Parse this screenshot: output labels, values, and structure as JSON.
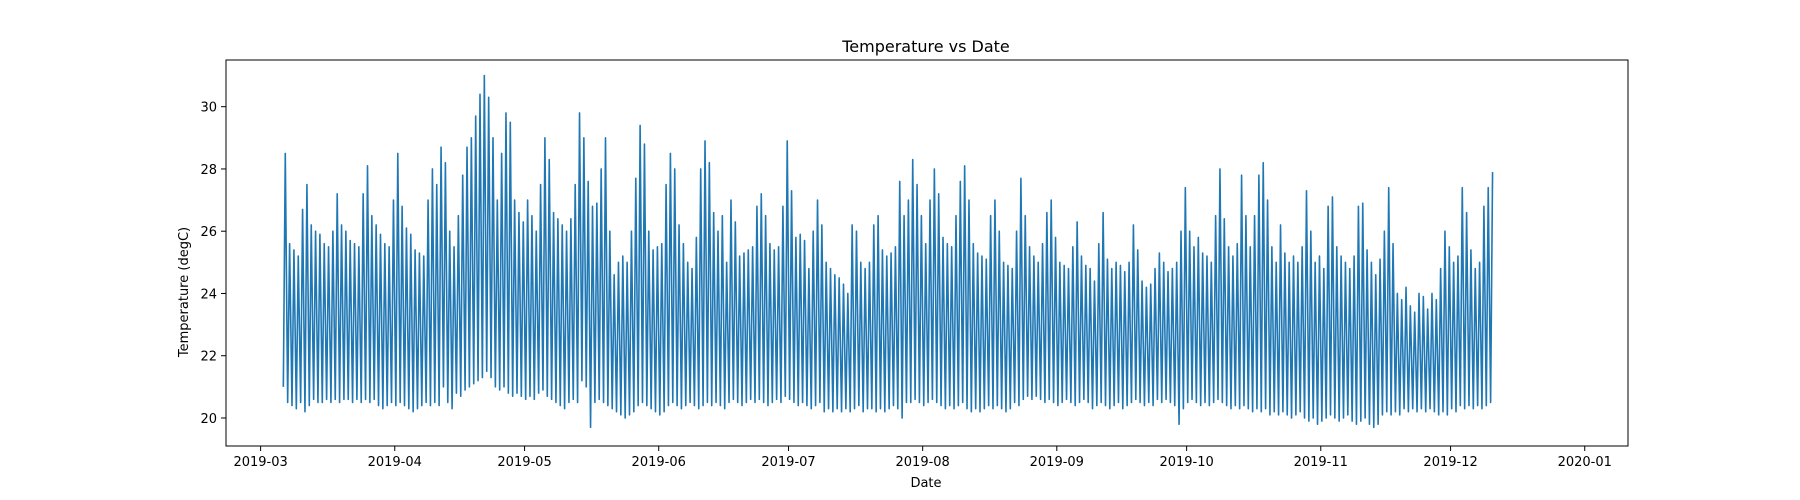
{
  "chart_data": {
    "type": "line",
    "title": "Temperature vs Date",
    "xlabel": "Date",
    "ylabel": "Temperature (degC)",
    "grid": false,
    "legend": "none",
    "x_ticks": [
      "2019-03",
      "2019-04",
      "2019-05",
      "2019-06",
      "2019-07",
      "2019-08",
      "2019-09",
      "2019-10",
      "2019-11",
      "2019-12",
      "2020-01"
    ],
    "xlim": [
      "2019-02-21",
      "2020-01-11"
    ],
    "y_ticks": [
      20,
      22,
      24,
      26,
      28,
      30
    ],
    "ylim": [
      19.1,
      31.5
    ],
    "series": [
      {
        "name": "",
        "color": "#1f77b4",
        "start_date": "2019-03-06",
        "end_date": "2019-12-31",
        "daily_range": [
          [
            21.0,
            28.5
          ],
          [
            20.5,
            25.6
          ],
          [
            20.4,
            25.4
          ],
          [
            20.3,
            25.2
          ],
          [
            20.5,
            26.7
          ],
          [
            20.2,
            27.5
          ],
          [
            20.4,
            26.2
          ],
          [
            20.6,
            26.0
          ],
          [
            20.5,
            25.9
          ],
          [
            20.5,
            25.6
          ],
          [
            20.6,
            25.5
          ],
          [
            20.5,
            26.0
          ],
          [
            20.6,
            27.2
          ],
          [
            20.5,
            26.2
          ],
          [
            20.6,
            26.0
          ],
          [
            20.6,
            25.7
          ],
          [
            20.5,
            25.6
          ],
          [
            20.6,
            25.5
          ],
          [
            20.5,
            27.2
          ],
          [
            20.6,
            28.1
          ],
          [
            20.5,
            26.5
          ],
          [
            20.6,
            26.2
          ],
          [
            20.4,
            25.9
          ],
          [
            20.3,
            25.6
          ],
          [
            20.4,
            25.5
          ],
          [
            20.5,
            27.0
          ],
          [
            20.4,
            28.5
          ],
          [
            20.5,
            26.8
          ],
          [
            20.4,
            26.1
          ],
          [
            20.3,
            25.9
          ],
          [
            20.2,
            25.4
          ],
          [
            20.3,
            25.3
          ],
          [
            20.4,
            25.2
          ],
          [
            20.5,
            27.0
          ],
          [
            20.4,
            28.0
          ],
          [
            20.5,
            27.5
          ],
          [
            20.4,
            28.7
          ],
          [
            21.0,
            28.2
          ],
          [
            20.5,
            26.0
          ],
          [
            20.3,
            25.5
          ],
          [
            20.8,
            26.5
          ],
          [
            20.7,
            27.8
          ],
          [
            20.9,
            28.7
          ],
          [
            21.0,
            29.0
          ],
          [
            21.1,
            29.7
          ],
          [
            21.2,
            30.4
          ],
          [
            21.3,
            31.0
          ],
          [
            21.5,
            30.3
          ],
          [
            21.3,
            29.0
          ],
          [
            21.0,
            27.0
          ],
          [
            20.9,
            28.5
          ],
          [
            21.0,
            29.8
          ],
          [
            20.8,
            29.5
          ],
          [
            20.7,
            27.0
          ],
          [
            20.8,
            26.6
          ],
          [
            20.7,
            26.3
          ],
          [
            20.6,
            27.0
          ],
          [
            20.7,
            26.5
          ],
          [
            20.6,
            26.0
          ],
          [
            20.8,
            27.5
          ],
          [
            20.9,
            29.0
          ],
          [
            20.7,
            28.3
          ],
          [
            20.6,
            26.6
          ],
          [
            20.5,
            26.4
          ],
          [
            20.4,
            26.2
          ],
          [
            20.3,
            26.0
          ],
          [
            20.5,
            26.4
          ],
          [
            20.6,
            27.5
          ],
          [
            20.5,
            29.8
          ],
          [
            21.2,
            29.0
          ],
          [
            21.0,
            27.6
          ],
          [
            19.7,
            26.8
          ],
          [
            20.5,
            26.9
          ],
          [
            20.6,
            28.0
          ],
          [
            20.5,
            29.0
          ],
          [
            20.4,
            26.0
          ],
          [
            20.3,
            24.6
          ],
          [
            20.2,
            25.0
          ],
          [
            20.1,
            25.2
          ],
          [
            20.0,
            25.0
          ],
          [
            20.1,
            26.0
          ],
          [
            20.2,
            27.7
          ],
          [
            20.4,
            29.4
          ],
          [
            20.5,
            28.8
          ],
          [
            20.4,
            26.0
          ],
          [
            20.3,
            25.4
          ],
          [
            20.2,
            25.5
          ],
          [
            20.1,
            25.6
          ],
          [
            20.2,
            27.5
          ],
          [
            20.4,
            28.5
          ],
          [
            20.5,
            28.0
          ],
          [
            20.4,
            26.2
          ],
          [
            20.3,
            25.6
          ],
          [
            20.4,
            25.0
          ],
          [
            20.5,
            24.8
          ],
          [
            20.4,
            25.8
          ],
          [
            20.3,
            28.0
          ],
          [
            20.4,
            28.9
          ],
          [
            20.5,
            28.2
          ],
          [
            20.4,
            26.6
          ],
          [
            20.5,
            26.0
          ],
          [
            20.4,
            26.5
          ],
          [
            20.3,
            25.0
          ],
          [
            20.5,
            27.0
          ],
          [
            20.6,
            26.3
          ],
          [
            20.5,
            25.2
          ],
          [
            20.4,
            25.3
          ],
          [
            20.5,
            25.4
          ],
          [
            20.6,
            25.5
          ],
          [
            20.5,
            26.8
          ],
          [
            20.6,
            27.2
          ],
          [
            20.5,
            26.5
          ],
          [
            20.4,
            25.6
          ],
          [
            20.5,
            25.4
          ],
          [
            20.6,
            25.5
          ],
          [
            20.5,
            26.8
          ],
          [
            20.7,
            28.9
          ],
          [
            20.6,
            27.3
          ],
          [
            20.5,
            25.8
          ],
          [
            20.4,
            25.9
          ],
          [
            20.5,
            25.7
          ],
          [
            20.4,
            24.8
          ],
          [
            20.3,
            26.0
          ],
          [
            20.4,
            27.0
          ],
          [
            20.5,
            26.2
          ],
          [
            20.2,
            25.0
          ],
          [
            20.3,
            24.8
          ],
          [
            20.2,
            24.6
          ],
          [
            20.3,
            24.5
          ],
          [
            20.2,
            24.3
          ],
          [
            20.3,
            24.0
          ],
          [
            20.2,
            26.2
          ],
          [
            20.3,
            26.0
          ],
          [
            20.4,
            25.0
          ],
          [
            20.2,
            24.8
          ],
          [
            20.3,
            25.0
          ],
          [
            20.3,
            26.2
          ],
          [
            20.2,
            26.5
          ],
          [
            20.3,
            25.4
          ],
          [
            20.2,
            25.2
          ],
          [
            20.3,
            25.3
          ],
          [
            20.4,
            25.5
          ],
          [
            20.3,
            27.6
          ],
          [
            20.0,
            26.5
          ],
          [
            20.5,
            27.0
          ],
          [
            20.5,
            28.3
          ],
          [
            20.6,
            27.5
          ],
          [
            20.5,
            26.5
          ],
          [
            20.4,
            25.6
          ],
          [
            20.5,
            27.0
          ],
          [
            20.6,
            28.0
          ],
          [
            20.5,
            27.2
          ],
          [
            20.4,
            25.8
          ],
          [
            20.3,
            25.6
          ],
          [
            20.4,
            25.5
          ],
          [
            20.3,
            26.5
          ],
          [
            20.4,
            27.6
          ],
          [
            20.5,
            28.1
          ],
          [
            20.3,
            27.0
          ],
          [
            20.2,
            25.6
          ],
          [
            20.3,
            25.3
          ],
          [
            20.2,
            25.2
          ],
          [
            20.3,
            25.1
          ],
          [
            20.4,
            26.5
          ],
          [
            20.3,
            27.0
          ],
          [
            20.4,
            26.0
          ],
          [
            20.3,
            25.0
          ],
          [
            20.2,
            24.9
          ],
          [
            20.3,
            24.8
          ],
          [
            20.5,
            26.0
          ],
          [
            20.4,
            27.7
          ],
          [
            20.6,
            26.5
          ],
          [
            20.7,
            25.5
          ],
          [
            20.6,
            25.2
          ],
          [
            20.7,
            25.0
          ],
          [
            20.6,
            25.6
          ],
          [
            20.5,
            26.6
          ],
          [
            20.6,
            27.0
          ],
          [
            20.5,
            25.8
          ],
          [
            20.4,
            25.0
          ],
          [
            20.5,
            24.9
          ],
          [
            20.6,
            24.8
          ],
          [
            20.5,
            25.5
          ],
          [
            20.4,
            26.3
          ],
          [
            20.5,
            25.2
          ],
          [
            20.6,
            24.9
          ],
          [
            20.5,
            24.8
          ],
          [
            20.3,
            24.4
          ],
          [
            20.4,
            25.6
          ],
          [
            20.5,
            26.6
          ],
          [
            20.4,
            25.1
          ],
          [
            20.3,
            24.8
          ],
          [
            20.4,
            25.0
          ],
          [
            20.5,
            24.9
          ],
          [
            20.3,
            24.7
          ],
          [
            20.4,
            25.0
          ],
          [
            20.5,
            26.2
          ],
          [
            20.6,
            25.4
          ],
          [
            20.5,
            24.4
          ],
          [
            20.4,
            24.2
          ],
          [
            20.5,
            24.3
          ],
          [
            20.4,
            24.8
          ],
          [
            20.6,
            25.3
          ],
          [
            20.5,
            25.0
          ],
          [
            20.6,
            24.7
          ],
          [
            20.5,
            24.8
          ],
          [
            20.4,
            25.0
          ],
          [
            19.8,
            26.0
          ],
          [
            20.3,
            27.4
          ],
          [
            20.5,
            26.0
          ],
          [
            20.6,
            25.5
          ],
          [
            20.5,
            25.8
          ],
          [
            20.4,
            25.3
          ],
          [
            20.5,
            25.2
          ],
          [
            20.4,
            25.0
          ],
          [
            20.5,
            26.5
          ],
          [
            20.6,
            28.0
          ],
          [
            20.5,
            26.4
          ],
          [
            20.4,
            25.5
          ],
          [
            20.3,
            25.2
          ],
          [
            20.4,
            25.6
          ],
          [
            20.3,
            27.8
          ],
          [
            20.4,
            26.5
          ],
          [
            20.3,
            25.5
          ],
          [
            20.2,
            26.5
          ],
          [
            20.3,
            27.8
          ],
          [
            20.2,
            28.2
          ],
          [
            20.3,
            27.0
          ],
          [
            20.1,
            25.5
          ],
          [
            20.2,
            25.0
          ],
          [
            20.1,
            26.2
          ],
          [
            20.2,
            25.3
          ],
          [
            20.1,
            25.0
          ],
          [
            20.0,
            25.2
          ],
          [
            20.1,
            25.0
          ],
          [
            20.2,
            25.5
          ],
          [
            20.0,
            27.3
          ],
          [
            19.9,
            26.0
          ],
          [
            20.0,
            25.0
          ],
          [
            19.8,
            25.2
          ],
          [
            19.9,
            24.8
          ],
          [
            20.0,
            26.8
          ],
          [
            20.1,
            27.1
          ],
          [
            20.0,
            25.5
          ],
          [
            19.9,
            25.2
          ],
          [
            20.0,
            25.0
          ],
          [
            20.1,
            24.8
          ],
          [
            19.9,
            25.2
          ],
          [
            19.8,
            26.8
          ],
          [
            19.9,
            26.9
          ],
          [
            20.0,
            25.4
          ],
          [
            19.8,
            25.0
          ],
          [
            19.7,
            24.6
          ],
          [
            19.8,
            25.1
          ],
          [
            20.1,
            26.0
          ],
          [
            20.2,
            27.4
          ],
          [
            20.1,
            25.6
          ],
          [
            20.2,
            24.0
          ],
          [
            20.1,
            23.8
          ],
          [
            20.3,
            24.2
          ],
          [
            20.2,
            23.6
          ],
          [
            20.3,
            23.4
          ],
          [
            20.2,
            24.0
          ],
          [
            20.3,
            23.9
          ],
          [
            20.2,
            23.5
          ],
          [
            20.3,
            24.0
          ],
          [
            20.2,
            23.8
          ],
          [
            20.1,
            24.8
          ],
          [
            20.2,
            26.0
          ],
          [
            20.1,
            25.5
          ],
          [
            20.3,
            25.0
          ],
          [
            20.2,
            25.2
          ],
          [
            20.4,
            27.4
          ],
          [
            20.3,
            26.6
          ],
          [
            20.4,
            25.4
          ],
          [
            20.3,
            24.8
          ],
          [
            20.4,
            25.0
          ],
          [
            20.3,
            26.8
          ],
          [
            20.4,
            27.4
          ],
          [
            20.5,
            27.9
          ]
        ]
      }
    ]
  }
}
